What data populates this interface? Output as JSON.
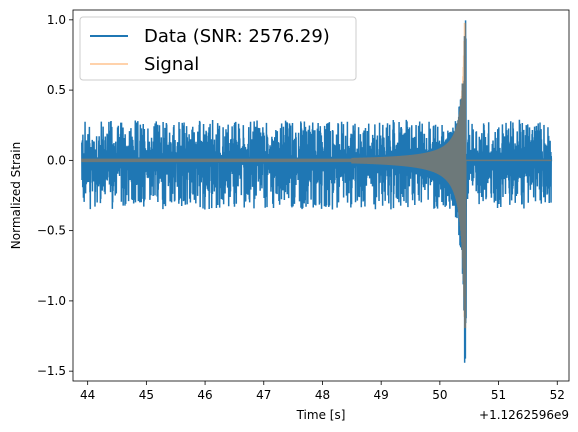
{
  "chart_data": {
    "type": "line",
    "xlabel": "Time [s]",
    "ylabel": "Normalized Strain",
    "x_offset_label": "+1.1262596e9",
    "xlim": [
      43.75,
      52.2
    ],
    "ylim": [
      -1.57,
      1.07
    ],
    "xticks": [
      44,
      45,
      46,
      47,
      48,
      49,
      50,
      51,
      52
    ],
    "yticks": [
      -1.5,
      -1.0,
      -0.5,
      0.0,
      0.5,
      1.0
    ],
    "ytick_labels": [
      "−1.5",
      "−1.0",
      "−0.5",
      "0.0",
      "0.5",
      "1.0"
    ],
    "grid": false,
    "legend_position": "upper-left",
    "series": [
      {
        "name": "Data (SNR: 2576.29)",
        "color": "#1f77b4",
        "x_range": [
          43.9,
          51.9
        ],
        "background_noise_amplitude": [
          -0.35,
          0.29
        ],
        "peak_max": 1.0,
        "peak_min": -1.45,
        "peak_time": 50.42
      },
      {
        "name": "Signal",
        "color": "#ff7f0e",
        "opacity": 0.35,
        "x_range": [
          43.9,
          51.9
        ],
        "baseline": 0.0,
        "chirp_start": 48.5,
        "peak_time": 50.42,
        "peak_max": 1.0,
        "peak_min": -1.22
      }
    ]
  }
}
